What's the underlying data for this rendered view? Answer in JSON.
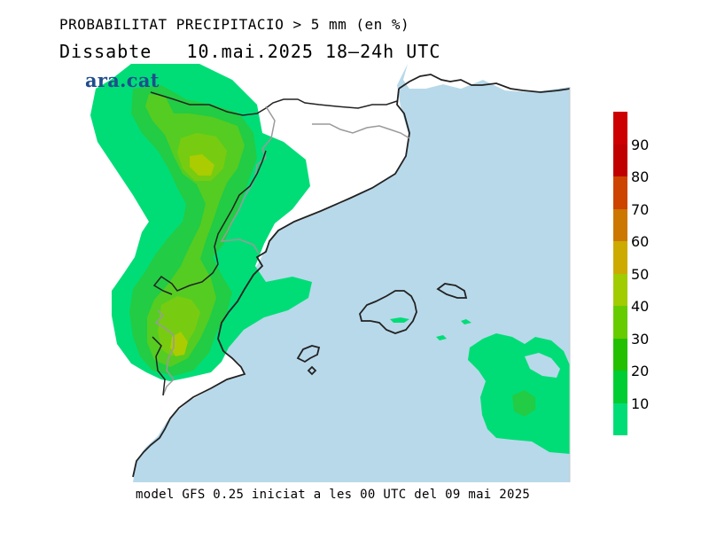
{
  "header": {
    "title": "PROBABILITAT PRECIPITACIO > 5 mm (en %)",
    "day": "Dissabte",
    "date": "10.mai.2025",
    "period": "18–24h UTC"
  },
  "logo_text": "ara.cat",
  "footer": "model GFS 0.25 iniciat a les 00 UTC del 09 mai 2025",
  "legend": {
    "levels": [
      {
        "value": "90",
        "color": "#c00000"
      },
      {
        "value": "80",
        "color": "#cc4400"
      },
      {
        "value": "70",
        "color": "#cc7700"
      },
      {
        "value": "60",
        "color": "#ccaa00"
      },
      {
        "value": "50",
        "color": "#a0cc00"
      },
      {
        "value": "40",
        "color": "#66cc00"
      },
      {
        "value": "30",
        "color": "#22c000"
      },
      {
        "value": "20",
        "color": "#00cc33"
      },
      {
        "value": "10",
        "color": "#00dd77"
      }
    ],
    "top_color": "#cc0000"
  },
  "colors": {
    "sea": "#b8d9ea",
    "land": "#ffffff",
    "p10": "#00dd77",
    "p20": "#22cc44",
    "p30": "#55cc22",
    "p40": "#77cc11",
    "p50": "#aacc00",
    "coast": "#222222",
    "border": "#9a9a9a"
  }
}
